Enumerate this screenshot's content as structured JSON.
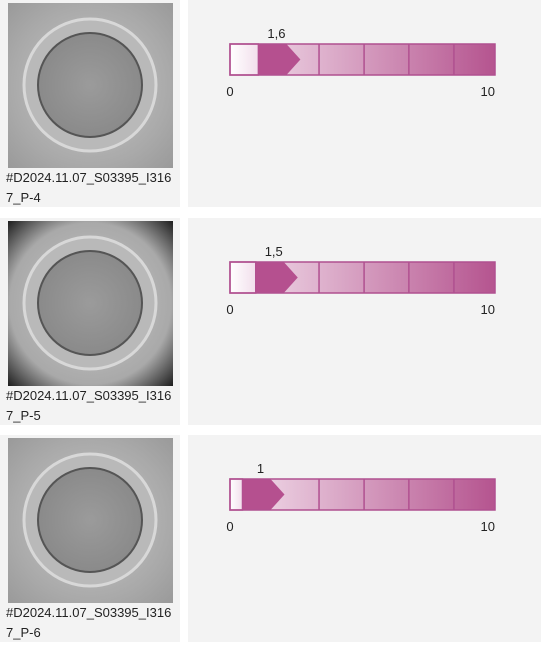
{
  "items": [
    {
      "caption": "#D2024.11.07_S03395_I3167_P-4",
      "score": 1.6,
      "score_label": "1,6",
      "scale": [
        0,
        10
      ]
    },
    {
      "caption": "#D2024.11.07_S03395_I3167_P-5",
      "score": 1.5,
      "score_label": "1,5",
      "scale": [
        0,
        10
      ]
    },
    {
      "caption": "#D2024.11.07_S03395_I3167_P-6",
      "score": 1,
      "score_label": "1",
      "scale": [
        0,
        10
      ]
    }
  ]
}
